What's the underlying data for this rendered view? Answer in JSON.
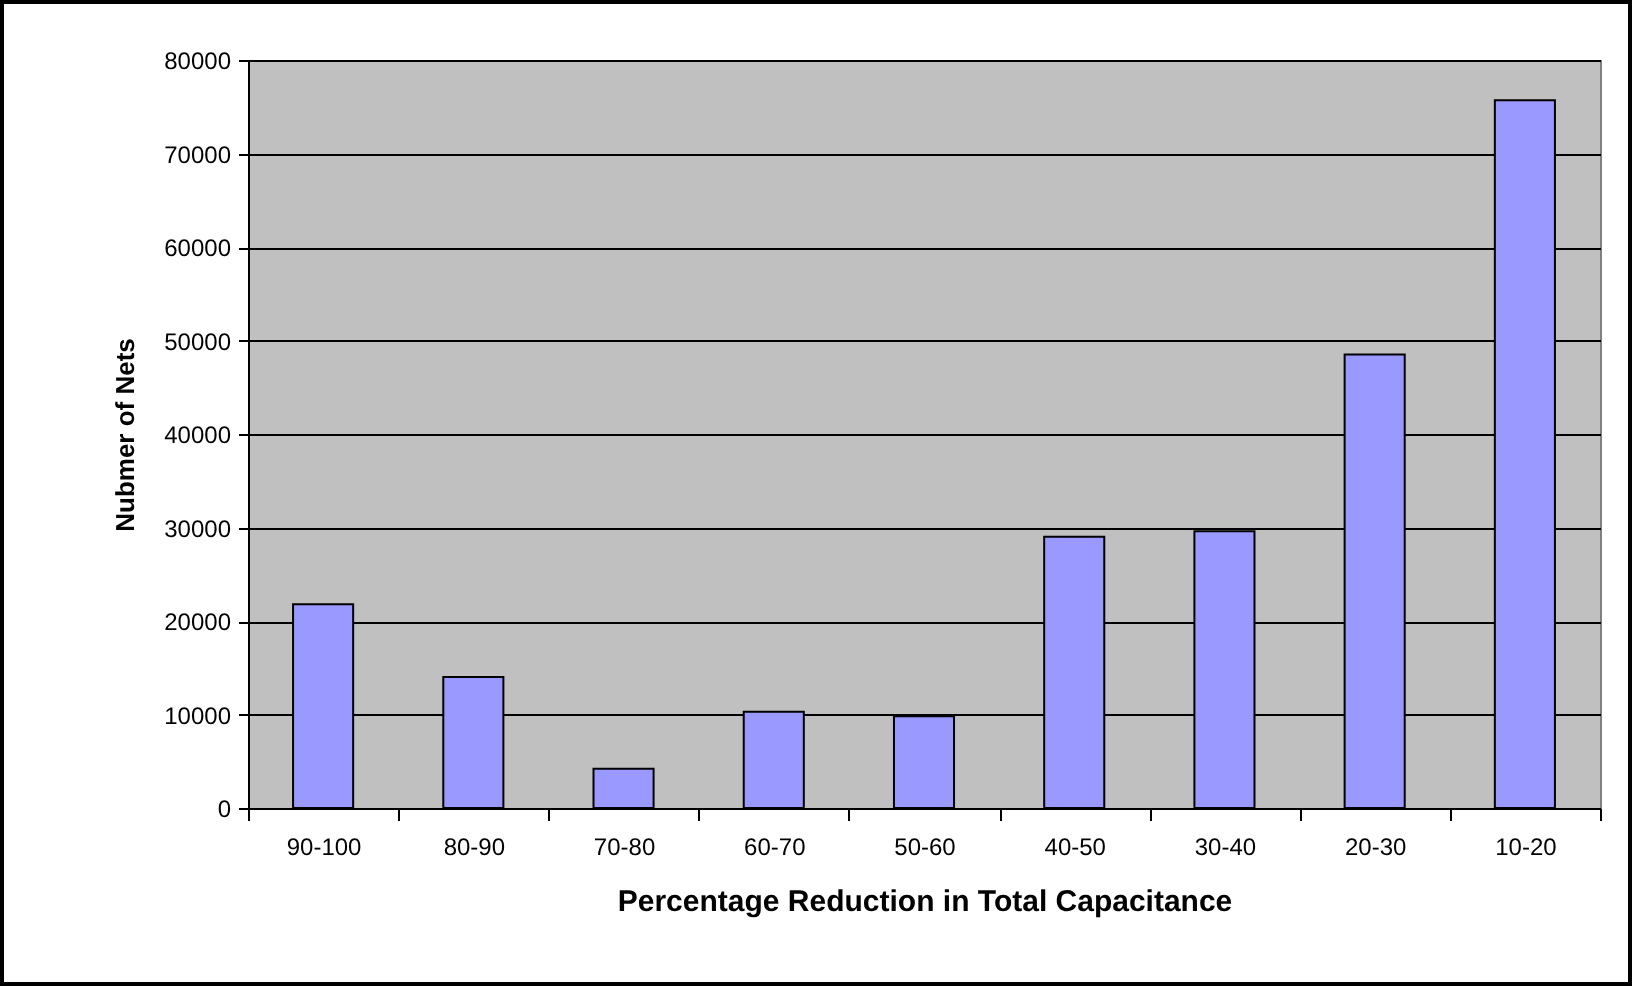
{
  "chart_data": {
    "type": "bar",
    "xlabel": "Percentage Reduction in Total Capacitance",
    "ylabel": "Nubmer of Nets",
    "categories": [
      "90-100",
      "80-90",
      "70-80",
      "60-70",
      "50-60",
      "40-50",
      "30-40",
      "20-30",
      "10-20"
    ],
    "values": [
      21800,
      14000,
      4200,
      10300,
      9800,
      29000,
      29600,
      48500,
      75700
    ],
    "color": "#9999ff",
    "ylim": [
      0,
      80000
    ],
    "yticks": [
      0,
      10000,
      20000,
      30000,
      40000,
      50000,
      60000,
      70000,
      80000
    ],
    "grid": "y"
  }
}
